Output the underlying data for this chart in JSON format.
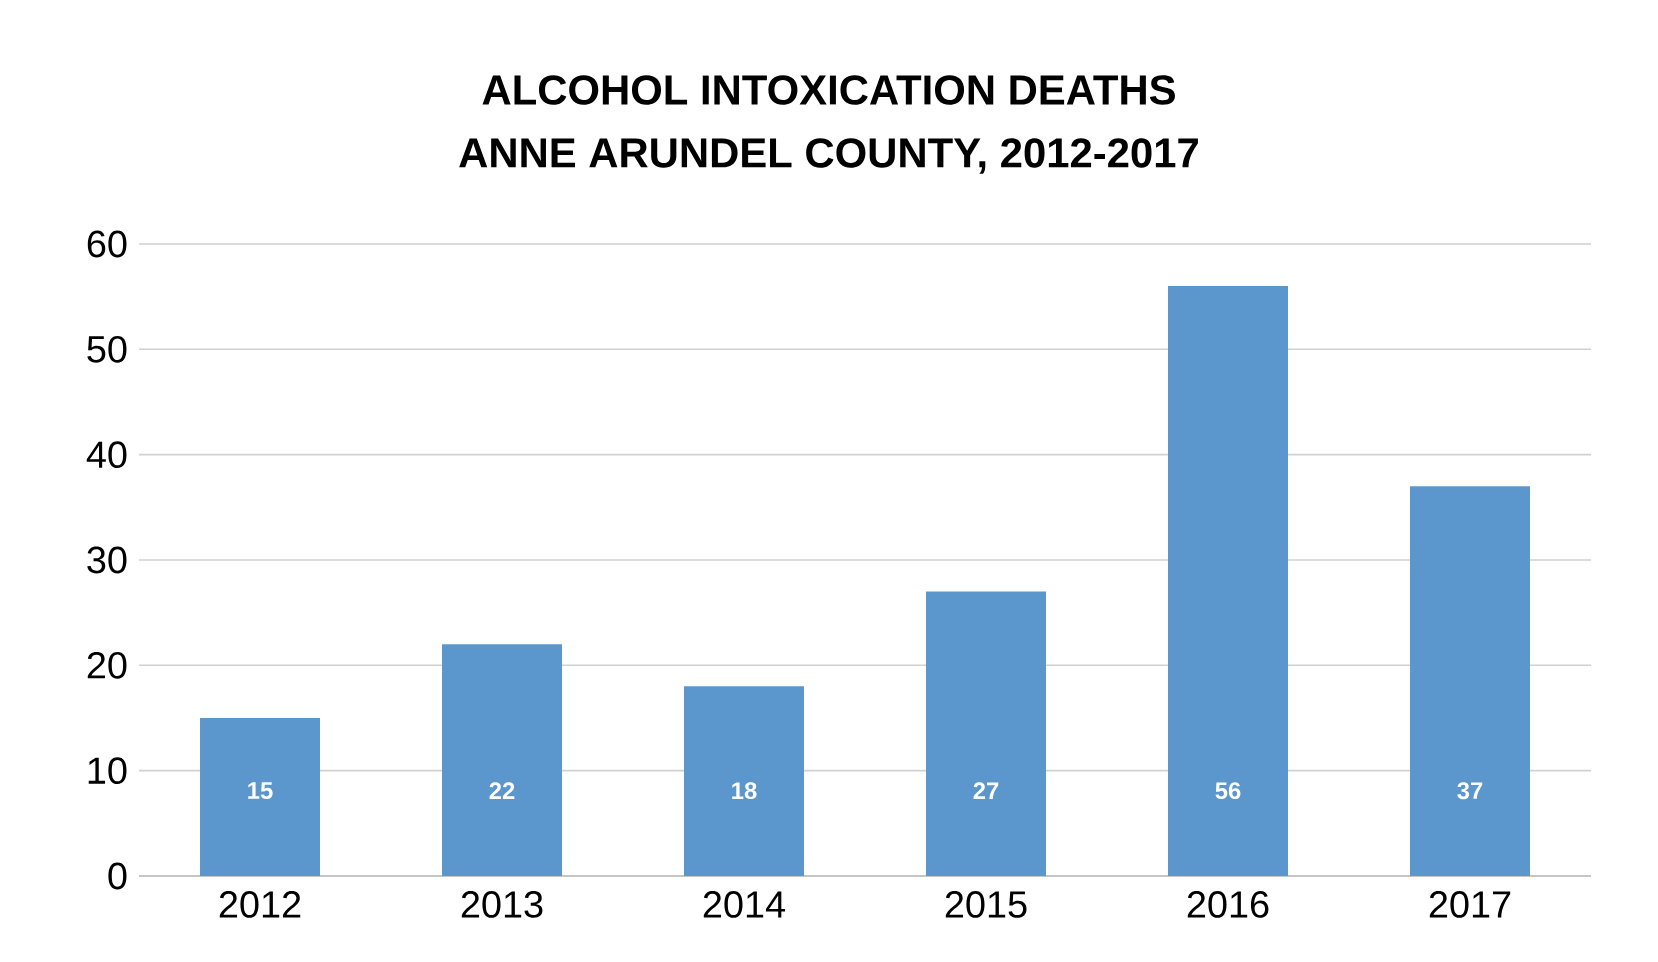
{
  "chart_data": {
    "type": "bar",
    "title": "ALCOHOL INTOXICATION DEATHS",
    "subtitle": "ANNE ARUNDEL COUNTY, 2012-2017",
    "categories": [
      "2012",
      "2013",
      "2014",
      "2015",
      "2016",
      "2017"
    ],
    "values": [
      15,
      22,
      18,
      27,
      56,
      37
    ],
    "color": "#5b97cc",
    "data_labels": true,
    "ylim": [
      0,
      60
    ],
    "yticks": [
      0,
      10,
      20,
      30,
      40,
      50,
      60
    ],
    "grid": "y"
  }
}
